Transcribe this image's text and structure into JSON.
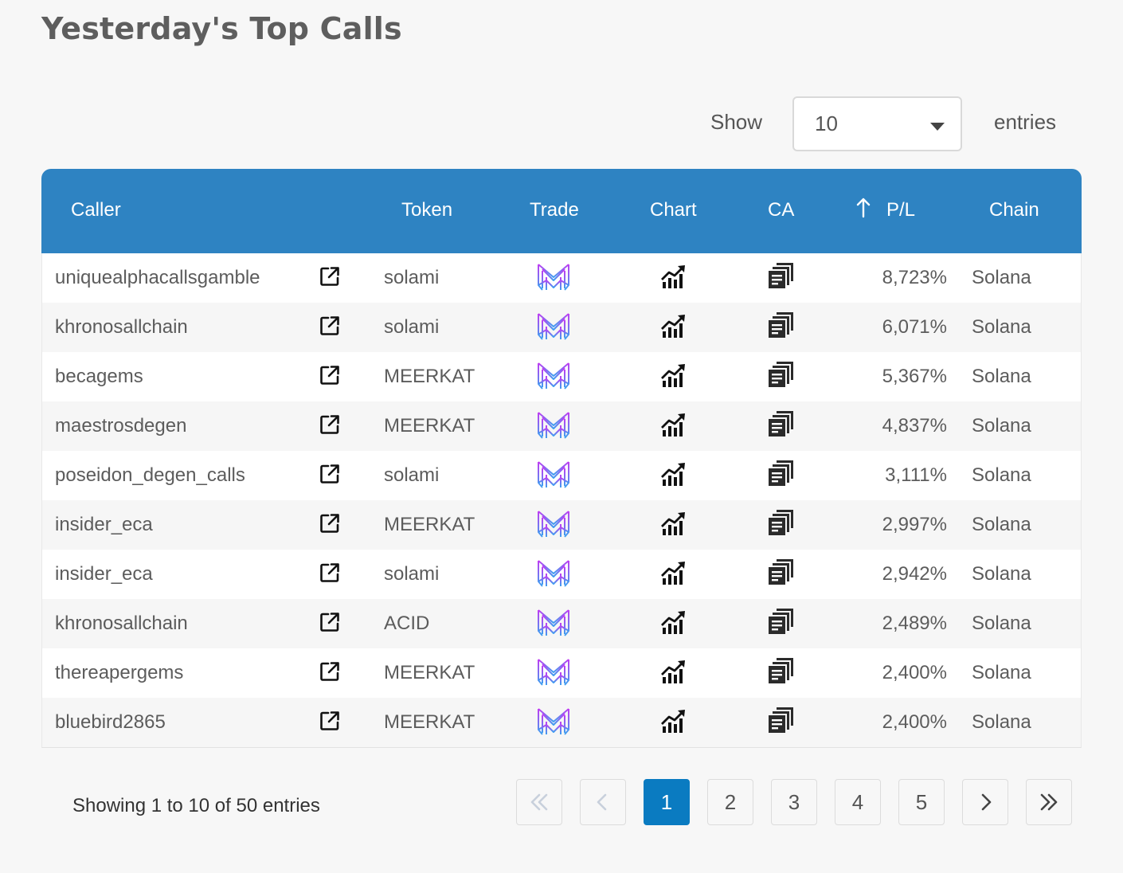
{
  "page": {
    "title": "Yesterday's Top Calls"
  },
  "length_menu": {
    "show_label": "Show",
    "selected": "10",
    "entries_label": "entries"
  },
  "table": {
    "headers": {
      "caller": "Caller",
      "token": "Token",
      "trade": "Trade",
      "chart": "Chart",
      "ca": "CA",
      "pl": "P/L",
      "chain": "Chain"
    },
    "sort": {
      "column": "P/L",
      "direction": "ascending-arrow-icon"
    },
    "rows": [
      {
        "caller": "uniquealphacallsgamble",
        "token": "solami",
        "pl": "8,723%",
        "chain": "Solana"
      },
      {
        "caller": "khronosallchain",
        "token": "solami",
        "pl": "6,071%",
        "chain": "Solana"
      },
      {
        "caller": "becagems",
        "token": "MEERKAT",
        "pl": "5,367%",
        "chain": "Solana"
      },
      {
        "caller": "maestrosdegen",
        "token": "MEERKAT",
        "pl": "4,837%",
        "chain": "Solana"
      },
      {
        "caller": "poseidon_degen_calls",
        "token": "solami",
        "pl": "3,111%",
        "chain": "Solana"
      },
      {
        "caller": "insider_eca",
        "token": "MEERKAT",
        "pl": "2,997%",
        "chain": "Solana"
      },
      {
        "caller": "insider_eca",
        "token": "solami",
        "pl": "2,942%",
        "chain": "Solana"
      },
      {
        "caller": "khronosallchain",
        "token": "ACID",
        "pl": "2,489%",
        "chain": "Solana"
      },
      {
        "caller": "thereapergems",
        "token": "MEERKAT",
        "pl": "2,400%",
        "chain": "Solana"
      },
      {
        "caller": "bluebird2865",
        "token": "MEERKAT",
        "pl": "2,400%",
        "chain": "Solana"
      }
    ],
    "row_icons": {
      "link": "external-link-icon",
      "trade": "trade-logo-icon",
      "chart": "chart-trend-icon",
      "ca": "copy-icon"
    }
  },
  "footer": {
    "info": "Showing 1 to 10 of 50 entries",
    "pages": [
      "1",
      "2",
      "3",
      "4",
      "5"
    ],
    "current_page": "1"
  },
  "colors": {
    "header_bg": "#2e83c2",
    "active_page": "#0a7bc1",
    "trade_gradient_start": "#c13cf2",
    "trade_gradient_end": "#3da0f0"
  }
}
